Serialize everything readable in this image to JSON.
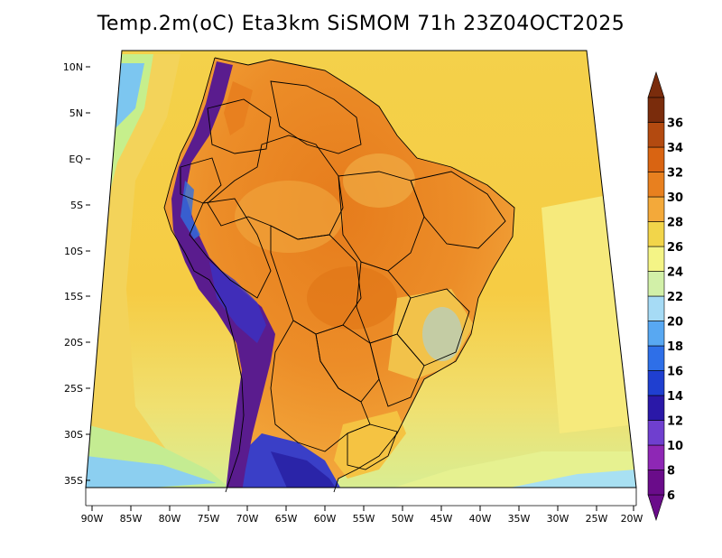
{
  "title": "Temp.2m(oC) Eta3km SiSMOM 71h 23Z04OCT2025",
  "axes": {
    "lat_labels": [
      "10N",
      "5N",
      "EQ",
      "5S",
      "10S",
      "15S",
      "20S",
      "25S",
      "30S",
      "35S"
    ],
    "lon_labels": [
      "90W",
      "85W",
      "80W",
      "75W",
      "70W",
      "65W",
      "60W",
      "55W",
      "50W",
      "45W",
      "40W",
      "35W",
      "30W",
      "25W",
      "20W"
    ]
  },
  "colorbar": {
    "labels": [
      "6",
      "8",
      "10",
      "12",
      "14",
      "16",
      "18",
      "20",
      "22",
      "24",
      "26",
      "28",
      "30",
      "32",
      "34",
      "36"
    ],
    "colors": [
      "#6a0c8a",
      "#8e27b5",
      "#6f3fcf",
      "#2a18a8",
      "#1f3fd0",
      "#2e6fe8",
      "#58a8f2",
      "#a6dbf5",
      "#d2f0a8",
      "#f4f486",
      "#f2d54a",
      "#f3a93a",
      "#e8801f",
      "#d96412",
      "#b34a10",
      "#7a2c0c"
    ],
    "min": 6,
    "max": 36
  },
  "legend_colors": {
    "ocean_warm": "#f6c94d",
    "ocean_mid": "#f4e070",
    "ocean_cool": "#e3f18d",
    "land_hot": "#e8801f",
    "land_warm": "#f3a93a",
    "andes_cold": "#5a1c8e"
  }
}
